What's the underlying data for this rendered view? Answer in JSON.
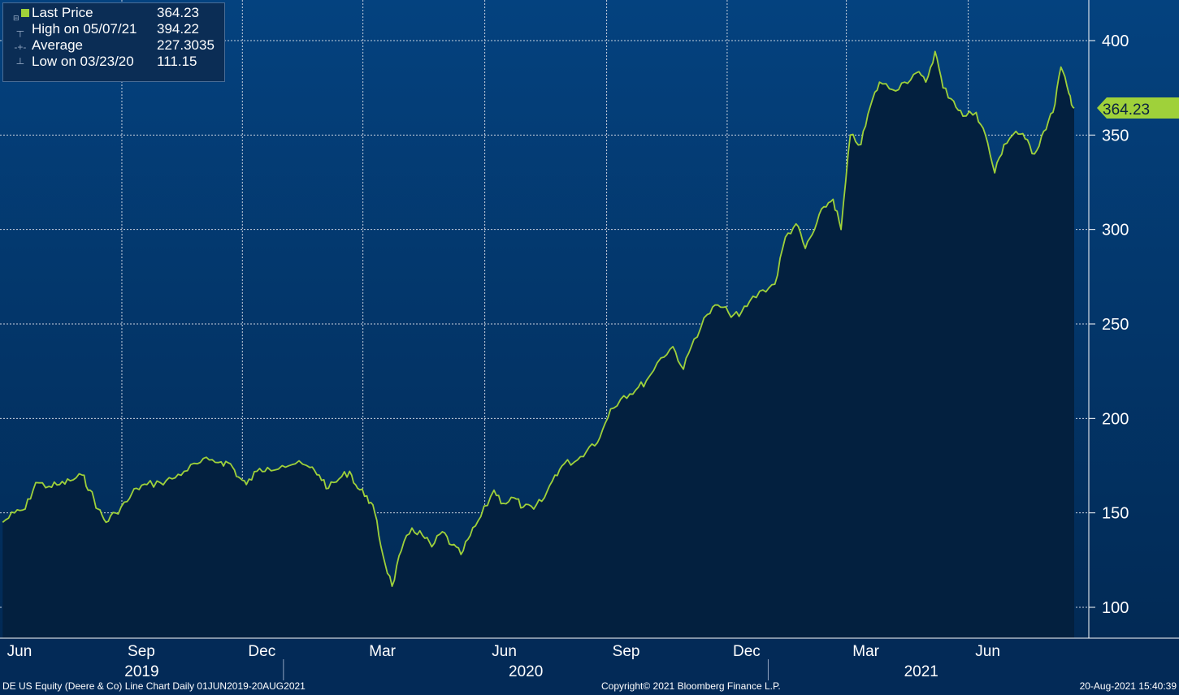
{
  "legend": {
    "rows": [
      {
        "label": "Last Price",
        "value": "364.23"
      },
      {
        "label": "High on 05/07/21",
        "value": "394.22"
      },
      {
        "label": "Average",
        "value": "227.3035"
      },
      {
        "label": "Low on 03/23/20",
        "value": "111.15"
      }
    ]
  },
  "last_price_tag": "364.23",
  "footer": {
    "left": "DE US Equity (Deere & Co) Line Chart  Daily 01JUN2019-20AUG2021",
    "center": "Copyright© 2021 Bloomberg Finance L.P.",
    "right": "20-Aug-2021 15:40:39"
  },
  "colors": {
    "background": "#032a57",
    "line": "#9fd13a",
    "area": "#03203f",
    "grid": "#c9d3df"
  },
  "chart_data": {
    "type": "area",
    "series": [
      {
        "name": "Last Price",
        "values_note": ""
      }
    ],
    "y_ticks": [
      100,
      150,
      200,
      250,
      300,
      350,
      400
    ],
    "ylim": [
      85,
      422
    ],
    "month_ticks": [
      "Jun",
      "Sep",
      "Dec",
      "Mar",
      "Jun",
      "Sep",
      "Dec",
      "Mar",
      "Jun"
    ],
    "year_labels": [
      "2019",
      "2020",
      "2021"
    ],
    "xlim": [
      "2019-06-01",
      "2021-08-20"
    ],
    "points": [
      [
        "2019-06-03",
        145
      ],
      [
        "2019-06-12",
        150
      ],
      [
        "2019-06-20",
        152
      ],
      [
        "2019-06-28",
        166
      ],
      [
        "2019-07-08",
        164
      ],
      [
        "2019-07-16",
        165
      ],
      [
        "2019-07-24",
        167
      ],
      [
        "2019-08-02",
        170
      ],
      [
        "2019-08-08",
        162
      ],
      [
        "2019-08-14",
        152
      ],
      [
        "2019-08-20",
        145
      ],
      [
        "2019-08-27",
        150
      ],
      [
        "2019-09-05",
        156
      ],
      [
        "2019-09-12",
        163
      ],
      [
        "2019-09-20",
        165
      ],
      [
        "2019-09-30",
        166
      ],
      [
        "2019-10-09",
        168
      ],
      [
        "2019-10-18",
        172
      ],
      [
        "2019-10-28",
        176
      ],
      [
        "2019-11-06",
        178
      ],
      [
        "2019-11-15",
        177
      ],
      [
        "2019-11-22",
        176
      ],
      [
        "2019-11-28",
        169
      ],
      [
        "2019-12-04",
        165
      ],
      [
        "2019-12-12",
        172
      ],
      [
        "2019-12-20",
        174
      ],
      [
        "2019-12-31",
        175
      ],
      [
        "2020-01-10",
        176
      ],
      [
        "2020-01-21",
        174
      ],
      [
        "2020-01-28",
        170
      ],
      [
        "2020-02-04",
        163
      ],
      [
        "2020-02-12",
        168
      ],
      [
        "2020-02-20",
        172
      ],
      [
        "2020-02-26",
        163
      ],
      [
        "2020-03-04",
        159
      ],
      [
        "2020-03-10",
        150
      ],
      [
        "2020-03-16",
        128
      ],
      [
        "2020-03-23",
        111.15
      ],
      [
        "2020-03-30",
        130
      ],
      [
        "2020-04-07",
        142
      ],
      [
        "2020-04-15",
        138
      ],
      [
        "2020-04-22",
        132
      ],
      [
        "2020-04-30",
        140
      ],
      [
        "2020-05-07",
        133
      ],
      [
        "2020-05-14",
        128
      ],
      [
        "2020-05-21",
        138
      ],
      [
        "2020-05-29",
        148
      ],
      [
        "2020-06-08",
        162
      ],
      [
        "2020-06-15",
        155
      ],
      [
        "2020-06-23",
        158
      ],
      [
        "2020-06-30",
        153
      ],
      [
        "2020-07-08",
        152
      ],
      [
        "2020-07-16",
        158
      ],
      [
        "2020-07-24",
        170
      ],
      [
        "2020-07-31",
        176
      ],
      [
        "2020-08-10",
        178
      ],
      [
        "2020-08-19",
        185
      ],
      [
        "2020-08-27",
        190
      ],
      [
        "2020-09-04",
        205
      ],
      [
        "2020-09-14",
        212
      ],
      [
        "2020-09-23",
        215
      ],
      [
        "2020-10-01",
        220
      ],
      [
        "2020-10-12",
        232
      ],
      [
        "2020-10-21",
        238
      ],
      [
        "2020-10-29",
        226
      ],
      [
        "2020-11-06",
        242
      ],
      [
        "2020-11-16",
        255
      ],
      [
        "2020-11-24",
        260
      ],
      [
        "2020-12-02",
        256
      ],
      [
        "2020-12-10",
        254
      ],
      [
        "2020-12-18",
        262
      ],
      [
        "2020-12-28",
        268
      ],
      [
        "2021-01-06",
        271
      ],
      [
        "2021-01-14",
        296
      ],
      [
        "2021-01-22",
        303
      ],
      [
        "2021-01-29",
        290
      ],
      [
        "2021-02-05",
        300
      ],
      [
        "2021-02-12",
        312
      ],
      [
        "2021-02-19",
        316
      ],
      [
        "2021-02-25",
        300
      ],
      [
        "2021-03-04",
        350
      ],
      [
        "2021-03-12",
        345
      ],
      [
        "2021-03-19",
        365
      ],
      [
        "2021-03-26",
        378
      ],
      [
        "2021-04-05",
        374
      ],
      [
        "2021-04-14",
        378
      ],
      [
        "2021-04-23",
        383
      ],
      [
        "2021-04-30",
        378
      ],
      [
        "2021-05-07",
        394.22
      ],
      [
        "2021-05-13",
        375
      ],
      [
        "2021-05-21",
        368
      ],
      [
        "2021-05-28",
        360
      ],
      [
        "2021-06-07",
        362
      ],
      [
        "2021-06-14",
        350
      ],
      [
        "2021-06-21",
        330
      ],
      [
        "2021-06-28",
        345
      ],
      [
        "2021-07-07",
        352
      ],
      [
        "2021-07-14",
        348
      ],
      [
        "2021-07-21",
        340
      ],
      [
        "2021-07-28",
        352
      ],
      [
        "2021-08-04",
        362
      ],
      [
        "2021-08-10",
        386
      ],
      [
        "2021-08-16",
        372
      ],
      [
        "2021-08-20",
        364.23
      ]
    ]
  }
}
